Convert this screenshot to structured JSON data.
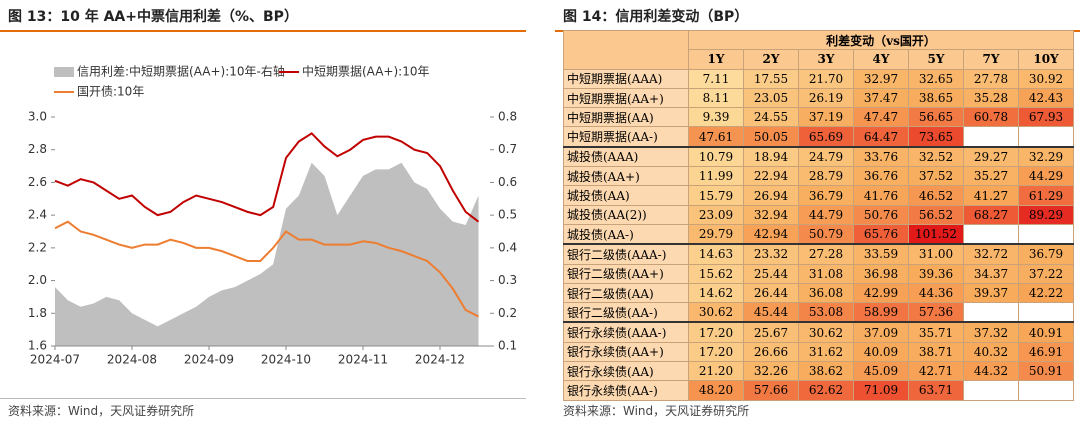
{
  "chart_data": {
    "type": "line",
    "title": "图 13：10 年 AA+中票信用利差（%、BP）",
    "source": "资料来源：Wind，天风证券研究所",
    "categories": [
      "2024-07",
      null,
      null,
      null,
      null,
      null,
      "2024-08",
      null,
      null,
      null,
      null,
      null,
      "2024-09",
      null,
      null,
      null,
      null,
      null,
      "2024-10",
      null,
      null,
      null,
      null,
      null,
      "2024-11",
      null,
      null,
      null,
      null,
      null,
      "2024-12",
      null,
      null,
      null
    ],
    "series": [
      {
        "name": "信用利差:中短期票据(AA+):10年-右轴",
        "color": "#bfbfbf",
        "axis": "y2",
        "kind": "area",
        "values": [
          0.28,
          0.24,
          0.22,
          0.23,
          0.25,
          0.24,
          0.2,
          0.18,
          0.16,
          0.18,
          0.2,
          0.22,
          0.25,
          0.27,
          0.28,
          0.3,
          0.32,
          0.35,
          0.52,
          0.56,
          0.66,
          0.62,
          0.5,
          0.56,
          0.62,
          0.64,
          0.64,
          0.66,
          0.6,
          0.58,
          0.52,
          0.48,
          0.47,
          0.56
        ]
      },
      {
        "name": "中短期票据(AA+):10年",
        "color": "#c00000",
        "values": [
          2.61,
          2.58,
          2.62,
          2.6,
          2.55,
          2.5,
          2.52,
          2.45,
          2.4,
          2.42,
          2.48,
          2.52,
          2.5,
          2.48,
          2.45,
          2.42,
          2.4,
          2.45,
          2.75,
          2.85,
          2.9,
          2.82,
          2.76,
          2.8,
          2.86,
          2.88,
          2.88,
          2.85,
          2.8,
          2.78,
          2.7,
          2.55,
          2.42,
          2.36
        ]
      },
      {
        "name": "国开债:10年",
        "color": "#ed7d31",
        "values": [
          2.32,
          2.36,
          2.3,
          2.28,
          2.25,
          2.22,
          2.2,
          2.22,
          2.22,
          2.25,
          2.23,
          2.2,
          2.2,
          2.18,
          2.15,
          2.12,
          2.12,
          2.2,
          2.3,
          2.25,
          2.25,
          2.22,
          2.22,
          2.22,
          2.24,
          2.23,
          2.2,
          2.18,
          2.15,
          2.12,
          2.05,
          1.95,
          1.82,
          1.78
        ]
      }
    ],
    "ylim": [
      1.6,
      3.0
    ],
    "yticks": [
      1.6,
      1.8,
      {
        "value": 2,
        "label": "2.0"
      },
      2.2,
      2.4,
      2.6,
      2.8,
      {
        "value": 3,
        "label": "3.0"
      }
    ],
    "y2lim": [
      0.1,
      0.8
    ],
    "y2ticks": [
      0.1,
      0.2,
      0.3,
      0.4,
      0.5,
      0.6,
      0.7,
      0.8
    ]
  },
  "table": {
    "title": "图 14：信用利差变动（BP）",
    "source": "资料来源：Wind，天风证券研究所",
    "group_header": "利差变动（vs国开）",
    "columns": [
      "1Y",
      "2Y",
      "3Y",
      "4Y",
      "5Y",
      "7Y",
      "10Y"
    ],
    "rows": [
      [
        "中短期票据(AAA)",
        "7.11",
        "17.55",
        "21.70",
        "32.97",
        "32.65",
        "27.78",
        "30.92"
      ],
      [
        "中短期票据(AA+)",
        "8.11",
        "23.05",
        "26.19",
        "37.47",
        "38.65",
        "35.28",
        "42.43"
      ],
      [
        "中短期票据(AA)",
        "9.39",
        "24.55",
        "37.19",
        "47.47",
        "56.65",
        "60.78",
        "67.93"
      ],
      [
        "中短期票据(AA-)",
        "47.61",
        "50.05",
        "65.69",
        "64.47",
        "73.65",
        null,
        null
      ],
      [
        "城投债(AAA)",
        "10.79",
        "18.94",
        "24.79",
        "33.76",
        "32.52",
        "29.27",
        "32.29"
      ],
      [
        "城投债(AA+)",
        "11.99",
        "22.94",
        "28.79",
        "36.76",
        "37.52",
        "35.27",
        "44.29"
      ],
      [
        "城投债(AA)",
        "15.79",
        "26.94",
        "36.79",
        "41.76",
        "46.52",
        "41.27",
        "61.29"
      ],
      [
        "城投债(AA(2))",
        "23.09",
        "32.94",
        "44.79",
        "50.76",
        "56.52",
        "68.27",
        "89.29"
      ],
      [
        "城投债(AA-)",
        "29.79",
        "42.94",
        "50.79",
        "65.76",
        "101.52",
        null,
        null
      ],
      [
        "银行二级债(AAA-)",
        "14.63",
        "23.32",
        "27.28",
        "33.59",
        "31.00",
        "32.72",
        "36.79"
      ],
      [
        "银行二级债(AA+)",
        "15.62",
        "25.44",
        "31.08",
        "36.98",
        "39.36",
        "34.37",
        "37.22"
      ],
      [
        "银行二级债(AA)",
        "14.62",
        "26.44",
        "36.08",
        "42.99",
        "44.36",
        "39.37",
        "42.22"
      ],
      [
        "银行二级债(AA-)",
        "30.62",
        "45.44",
        "53.08",
        "58.99",
        "57.36",
        null,
        null
      ],
      [
        "银行永续债(AAA-)",
        "17.20",
        "25.67",
        "30.62",
        "37.09",
        "35.71",
        "37.32",
        "40.91"
      ],
      [
        "银行永续债(AA+)",
        "17.20",
        "26.66",
        "31.62",
        "40.09",
        "38.71",
        "40.32",
        "46.91"
      ],
      [
        "银行永续债(AA)",
        "21.20",
        "32.26",
        "38.62",
        "45.09",
        "42.71",
        "44.32",
        "50.91"
      ],
      [
        "银行永续债(AA-)",
        "48.20",
        "57.66",
        "62.62",
        "71.09",
        "63.71",
        null,
        null
      ]
    ]
  }
}
